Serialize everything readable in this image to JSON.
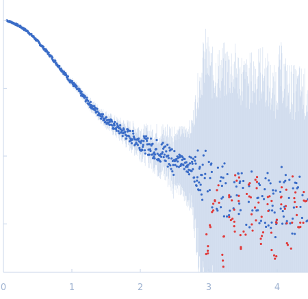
{
  "chart_data": {
    "type": "scatter",
    "title": "",
    "xlabel": "",
    "ylabel": "",
    "xlim": [
      0,
      4.45
    ],
    "ylim": [
      0,
      1
    ],
    "grid": false,
    "legend": "none",
    "x_ticks": [
      {
        "value": 0,
        "label": "0"
      },
      {
        "value": 1,
        "label": "1"
      },
      {
        "value": 2,
        "label": "2"
      },
      {
        "value": 3,
        "label": "3"
      },
      {
        "value": 4,
        "label": "4"
      }
    ],
    "y_ticks": [
      0.178,
      0.427,
      0.675,
      0.925
    ],
    "colors": {
      "points": "#3a6cc7",
      "outliers": "#e03a3a",
      "error_bars": "#b8cbe6",
      "axis": "#c8d6ea",
      "tick_text": "#9fb3d1"
    },
    "series": [
      {
        "role": "data",
        "x": [
          0.05,
          0.15,
          0.25,
          0.35,
          0.45,
          0.55,
          0.65,
          0.75,
          0.85,
          0.95,
          1.05,
          1.15,
          1.25,
          1.35,
          1.45,
          1.55,
          1.65,
          1.75,
          1.85,
          1.95,
          2.05,
          2.15,
          2.25,
          2.35,
          2.45,
          2.55,
          2.65,
          2.75,
          2.85,
          2.95,
          3.05,
          3.15,
          3.25,
          3.35,
          3.45,
          3.55,
          3.65,
          3.75,
          3.85,
          3.95,
          4.05,
          4.15,
          4.25,
          4.35,
          4.42
        ],
        "y": [
          0.925,
          0.915,
          0.902,
          0.885,
          0.862,
          0.834,
          0.806,
          0.775,
          0.744,
          0.712,
          0.682,
          0.652,
          0.622,
          0.595,
          0.571,
          0.55,
          0.532,
          0.515,
          0.5,
          0.486,
          0.471,
          0.46,
          0.448,
          0.436,
          0.424,
          0.41,
          0.398,
          0.39,
          0.375,
          0.342,
          0.33,
          0.31,
          0.29,
          0.295,
          0.3,
          0.26,
          0.275,
          0.28,
          0.27,
          0.22,
          0.29,
          0.26,
          0.24,
          0.27,
          0.25
        ],
        "y_err": [
          0.004,
          0.004,
          0.005,
          0.005,
          0.006,
          0.006,
          0.007,
          0.008,
          0.009,
          0.01,
          0.012,
          0.013,
          0.015,
          0.017,
          0.019,
          0.022,
          0.025,
          0.03,
          0.035,
          0.04,
          0.045,
          0.05,
          0.06,
          0.07,
          0.08,
          0.1,
          0.12,
          0.14,
          0.3,
          0.45,
          0.4,
          0.42,
          0.45,
          0.45,
          0.42,
          0.43,
          0.44,
          0.45,
          0.44,
          0.43,
          0.45,
          0.42,
          0.42,
          0.4,
          0.4
        ]
      },
      {
        "role": "outliers",
        "x": [
          2.95,
          3.05,
          3.12,
          3.2,
          3.3,
          3.35,
          3.42,
          3.5,
          3.58,
          3.66,
          3.72,
          3.8,
          3.88,
          3.95,
          4.02,
          4.1,
          4.18,
          4.25,
          4.32,
          4.4
        ],
        "y": [
          0.1,
          0.22,
          0.3,
          0.08,
          0.25,
          0.18,
          0.32,
          0.12,
          0.27,
          0.2,
          0.3,
          0.16,
          0.26,
          0.1,
          0.22,
          0.28,
          0.14,
          0.3,
          0.19,
          0.24
        ]
      }
    ]
  }
}
